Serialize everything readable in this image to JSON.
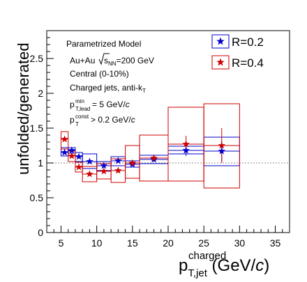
{
  "chart_data": {
    "type": "scatter",
    "title": "",
    "xlabel": {
      "main": "p",
      "sup": "charged",
      "sub": "T,jet",
      "unit": " (GeV/",
      "unit_it": "c",
      "unit_end": ")"
    },
    "ylabel": "unfolded/generated",
    "xlim": [
      3,
      37
    ],
    "ylim": [
      0,
      2.9
    ],
    "x_ticks": [
      5,
      10,
      15,
      20,
      25,
      30,
      35
    ],
    "y_ticks": [
      0,
      0.5,
      1,
      1.5,
      2,
      2.5
    ],
    "x_tick_labels": [
      "5",
      "10",
      "15",
      "20",
      "25",
      "30",
      "35"
    ],
    "y_tick_labels": [
      "0",
      "0.5",
      "1",
      "1.5",
      "2",
      "2.5"
    ],
    "reference_line": 1.0,
    "grid": false,
    "legend_position": "top-right",
    "annotations": {
      "line1": "Parametrized Model",
      "line2_a": "Au+Au ",
      "line2_s": "s",
      "line2_sub": "NN",
      "line2_b": "=200 GeV",
      "line3": "Central (0-10%)",
      "line4_a": "Charged jets, anti-k",
      "line4_sub": "T",
      "line5_p": "p",
      "line5_sup": "min",
      "line5_sub": "T,lead",
      "line5_rest": " = 5 GeV/",
      "line5_c": "c",
      "line6_p": "p",
      "line6_sup": "const",
      "line6_sub": "T",
      "line6_rest": " > 0.2 GeV/",
      "line6_c": "c"
    },
    "series": [
      {
        "name": "R=0.2",
        "color": "#0000cc",
        "marker": "star",
        "points": [
          {
            "x": 5.5,
            "y": 1.15,
            "xlo": 5,
            "xhi": 6,
            "box_lo": 1.1,
            "box_hi": 1.22
          },
          {
            "x": 6.5,
            "y": 1.18,
            "xlo": 6,
            "xhi": 7,
            "box_lo": 1.14,
            "box_hi": 1.22
          },
          {
            "x": 7.5,
            "y": 1.09,
            "xlo": 7,
            "xhi": 8,
            "box_lo": 1.02,
            "box_hi": 1.15
          },
          {
            "x": 9,
            "y": 1.02,
            "xlo": 8,
            "xhi": 10,
            "box_lo": 0.92,
            "box_hi": 1.13
          },
          {
            "x": 11,
            "y": 0.96,
            "xlo": 10,
            "xhi": 12,
            "box_lo": 0.89,
            "box_hi": 1.02
          },
          {
            "x": 13,
            "y": 1.03,
            "xlo": 12,
            "xhi": 14,
            "box_lo": 0.96,
            "box_hi": 1.09
          },
          {
            "x": 15,
            "y": 0.98,
            "xlo": 14,
            "xhi": 16,
            "box_lo": 0.94,
            "box_hi": 1.03
          },
          {
            "x": 18,
            "y": 1.05,
            "xlo": 16,
            "xhi": 20,
            "box_lo": 0.99,
            "box_hi": 1.11,
            "err": 0.03
          },
          {
            "x": 22.5,
            "y": 1.18,
            "xlo": 20,
            "xhi": 25,
            "box_lo": 1.13,
            "box_hi": 1.24,
            "err": 0.08
          },
          {
            "x": 27.5,
            "y": 1.17,
            "xlo": 25,
            "xhi": 30,
            "box_lo": 0.96,
            "box_hi": 1.37,
            "err": 0.15
          }
        ]
      },
      {
        "name": "R=0.4",
        "color": "#cc0000",
        "marker": "star",
        "points": [
          {
            "x": 5.5,
            "y": 1.34,
            "xlo": 5,
            "xhi": 6,
            "box_lo": 1.2,
            "box_hi": 1.45
          },
          {
            "x": 6.5,
            "y": 1.1,
            "xlo": 6,
            "xhi": 7,
            "box_lo": 1.02,
            "box_hi": 1.17
          },
          {
            "x": 7.5,
            "y": 0.94,
            "xlo": 7,
            "xhi": 8,
            "box_lo": 0.87,
            "box_hi": 1.01
          },
          {
            "x": 9,
            "y": 0.84,
            "xlo": 8,
            "xhi": 10,
            "box_lo": 0.73,
            "box_hi": 0.95
          },
          {
            "x": 11,
            "y": 0.88,
            "xlo": 10,
            "xhi": 12,
            "box_lo": 0.77,
            "box_hi": 0.99
          },
          {
            "x": 13,
            "y": 0.89,
            "xlo": 12,
            "xhi": 14,
            "box_lo": 0.72,
            "box_hi": 1.06
          },
          {
            "x": 15,
            "y": 1.0,
            "xlo": 14,
            "xhi": 16,
            "box_lo": 0.78,
            "box_hi": 1.25
          },
          {
            "x": 18,
            "y": 1.07,
            "xlo": 16,
            "xhi": 20,
            "box_lo": 0.74,
            "box_hi": 1.4
          },
          {
            "x": 22.5,
            "y": 1.27,
            "xlo": 20,
            "xhi": 25,
            "box_lo": 0.74,
            "box_hi": 1.8,
            "err": 0.12
          },
          {
            "x": 27.5,
            "y": 1.25,
            "xlo": 25,
            "xhi": 30,
            "box_lo": 0.64,
            "box_hi": 1.85,
            "err": 0.25
          }
        ]
      }
    ]
  }
}
